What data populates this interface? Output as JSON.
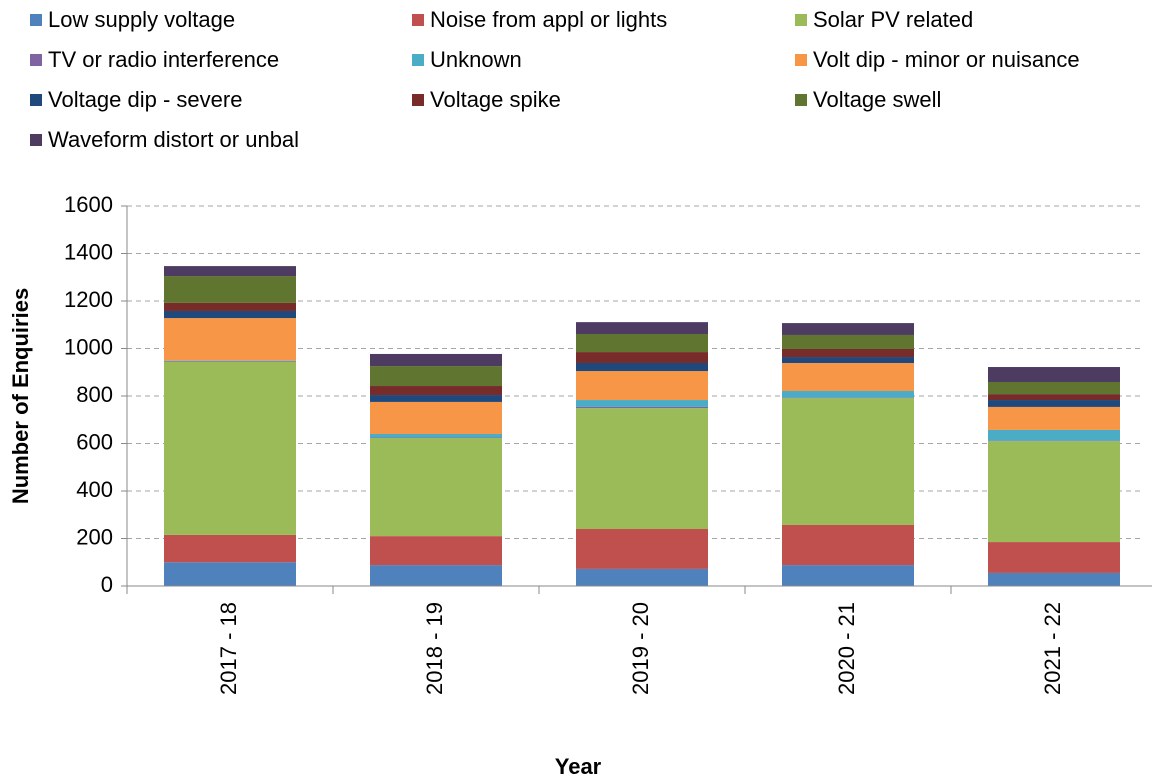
{
  "chart_data": {
    "type": "stacked_bar",
    "x_label": "Year",
    "y_label": "Number of Enquiries",
    "categories": [
      "2017 - 18",
      "2018 - 19",
      "2019 - 20",
      "2020 - 21",
      "2021 - 22"
    ],
    "series": [
      {
        "name": "Low supply voltage",
        "color": "#4f81bd",
        "values": [
          100,
          88,
          72,
          88,
          55
        ]
      },
      {
        "name": "Noise from appl or lights",
        "color": "#c0504d",
        "values": [
          115,
          122,
          168,
          169,
          130
        ]
      },
      {
        "name": "Solar PV related",
        "color": "#9bbb59",
        "values": [
          730,
          413,
          509,
          534,
          425
        ]
      },
      {
        "name": "TV or radio interference",
        "color": "#8064a2",
        "values": [
          3,
          2,
          5,
          2,
          2
        ]
      },
      {
        "name": "Unknown",
        "color": "#4bacc6",
        "values": [
          2,
          15,
          29,
          28,
          45
        ]
      },
      {
        "name": "Volt dip - minor or nuisance",
        "color": "#f79646",
        "values": [
          178,
          135,
          122,
          118,
          97
        ]
      },
      {
        "name": "Voltage dip - severe",
        "color": "#1f497d",
        "values": [
          30,
          29,
          34,
          25,
          29
        ]
      },
      {
        "name": "Voltage spike",
        "color": "#772c2a",
        "values": [
          34,
          38,
          46,
          34,
          25
        ]
      },
      {
        "name": "Voltage swell",
        "color": "#5f7530",
        "values": [
          113,
          84,
          76,
          59,
          51
        ]
      },
      {
        "name": "Waveform distort or unbal",
        "color": "#4d3b62",
        "values": [
          42,
          51,
          50,
          50,
          63
        ]
      }
    ],
    "ylim": [
      0,
      1600
    ],
    "yticks": [
      0,
      200,
      400,
      600,
      800,
      1000,
      1200,
      1400,
      1600
    ],
    "grid": true,
    "legend": "top"
  }
}
